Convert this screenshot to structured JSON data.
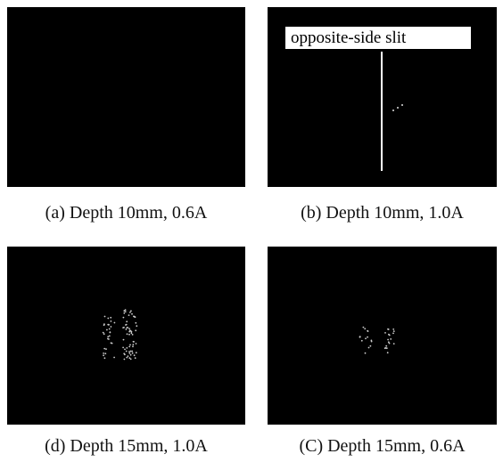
{
  "figure": {
    "panels": [
      {
        "caption": "(a) Depth 10mm, 0.6A"
      },
      {
        "caption": "(b) Depth 10mm, 1.0A",
        "annotation": "opposite-side slit"
      },
      {
        "caption": "(d) Depth 15mm, 1.0A"
      },
      {
        "caption": "(C) Depth 15mm, 0.6A"
      }
    ]
  }
}
